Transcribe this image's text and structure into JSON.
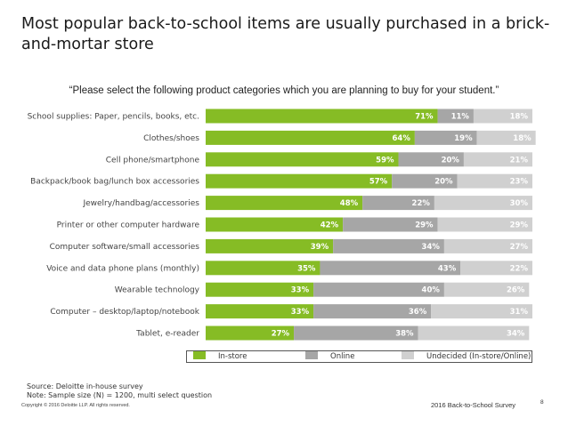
{
  "page": {
    "title": "Most popular back-to-school items are usually purchased in a brick-and-mortar store",
    "subtitle": "“Please select the following product categories which you are planning to buy for your student.”",
    "source_line1": "Source: Deloitte in-house survey",
    "source_line2": "Note: Sample size (N) = 1200, multi select question",
    "copyright": "Copyright © 2016 Deloitte LLP. All rights reserved.",
    "footer_title": "2016 Back-to-School Survey",
    "page_number": "8"
  },
  "colors": {
    "in_store": "#86bc25",
    "online": "#a6a6a6",
    "undecided": "#d0d0d0"
  },
  "chart_data": {
    "type": "bar",
    "orientation": "horizontal",
    "stacked": true,
    "title": "",
    "xlabel": "",
    "ylabel": "",
    "xlim": [
      0,
      100
    ],
    "grid": false,
    "legend": "bottom",
    "categories": [
      "School supplies: Paper, pencils, books, etc.",
      "Clothes/shoes",
      "Cell phone/smartphone",
      "Backpack/book bag/lunch box accessories",
      "Jewelry/handbag/accessories",
      "Printer or other computer hardware",
      "Computer software/small accessories",
      "Voice and data phone plans (monthly)",
      "Wearable technology",
      "Computer – desktop/laptop/notebook",
      "Tablet, e-reader"
    ],
    "series": [
      {
        "name": "In-store",
        "values": [
          71,
          64,
          59,
          57,
          48,
          42,
          39,
          35,
          33,
          33,
          27
        ]
      },
      {
        "name": "Online",
        "values": [
          11,
          19,
          20,
          20,
          22,
          29,
          34,
          43,
          40,
          36,
          38
        ]
      },
      {
        "name": "Undecided (In-store/Online)",
        "values": [
          18,
          18,
          21,
          23,
          30,
          29,
          27,
          22,
          26,
          31,
          34
        ]
      }
    ]
  }
}
